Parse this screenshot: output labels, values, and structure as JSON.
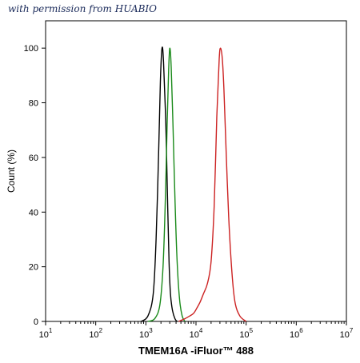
{
  "watermark": "with permission from HUABIO",
  "chart_data": {
    "type": "line",
    "title": "",
    "xlabel": "TMEM16A -iFluor™ 488",
    "ylabel": "Count (%)",
    "x_scale": "log",
    "xlim": [
      10,
      10000000
    ],
    "ylim": [
      0,
      110
    ],
    "x_ticks": [
      {
        "value": 10,
        "base": "10",
        "exp": "1"
      },
      {
        "value": 100,
        "base": "10",
        "exp": "2"
      },
      {
        "value": 1000,
        "base": "10",
        "exp": "3"
      },
      {
        "value": 10000,
        "base": "10",
        "exp": "4"
      },
      {
        "value": 100000,
        "base": "10",
        "exp": "5"
      },
      {
        "value": 1000000,
        "base": "10",
        "exp": "6"
      },
      {
        "value": 10000000,
        "base": "10",
        "exp": "7"
      }
    ],
    "y_ticks": [
      0,
      20,
      40,
      60,
      80,
      100
    ],
    "grid": false,
    "series": [
      {
        "color": "#000000",
        "x": [
          800,
          1100,
          1400,
          1600,
          1800,
          1950,
          2100,
          2250,
          2500,
          2700,
          2900,
          3100,
          3400,
          3800,
          4200
        ],
        "y": [
          0,
          2,
          10,
          30,
          62,
          88,
          100,
          95,
          72,
          45,
          22,
          10,
          4,
          1,
          0
        ]
      },
      {
        "color": "#1a8a1a",
        "x": [
          1100,
          1500,
          1900,
          2200,
          2450,
          2650,
          2850,
          3000,
          3200,
          3500,
          3800,
          4200,
          4700,
          5300,
          6000
        ],
        "y": [
          0,
          1,
          6,
          20,
          45,
          72,
          92,
          100,
          93,
          70,
          45,
          22,
          8,
          2,
          0
        ]
      },
      {
        "color": "#cc2222",
        "x": [
          4500,
          6000,
          7500,
          9000,
          10500,
          12000,
          14000,
          17000,
          20000,
          23000,
          26000,
          29000,
          31000,
          33500,
          36000,
          40000,
          45000,
          52000,
          60000,
          75000,
          100000
        ],
        "y": [
          0,
          1,
          2,
          3,
          5,
          7,
          10,
          14,
          22,
          42,
          75,
          96,
          100,
          96,
          85,
          62,
          38,
          18,
          7,
          2,
          0
        ]
      }
    ]
  }
}
